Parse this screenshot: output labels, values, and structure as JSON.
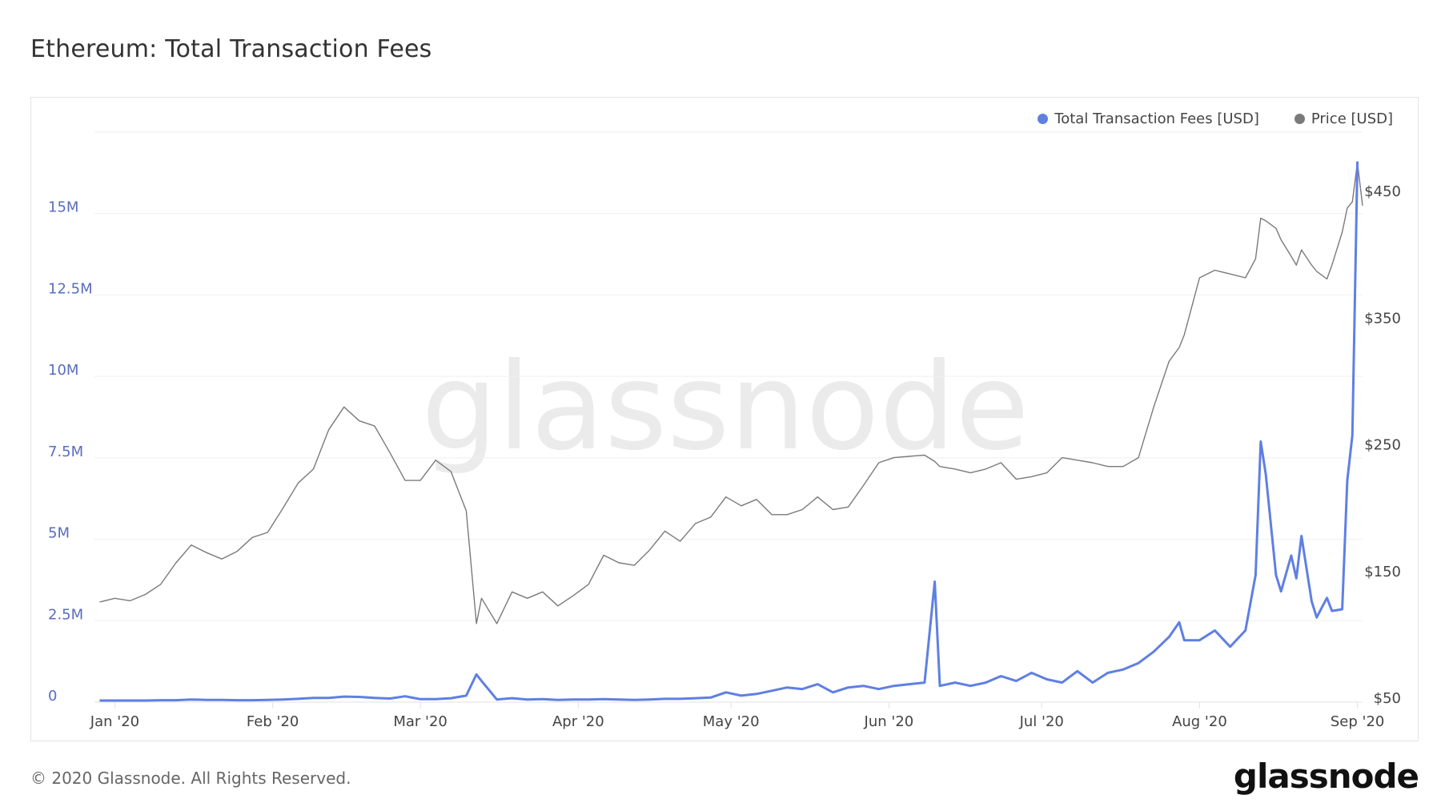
{
  "title": "Ethereum: Total Transaction Fees",
  "footer": "© 2020 Glassnode. All Rights Reserved.",
  "logo": "glassnode",
  "watermark": "glassnode",
  "colors": {
    "fees": "#5f7fe3",
    "price": "#7a7a7a",
    "grid": "#efefef",
    "left_axis": "#5a6cc0"
  },
  "chart_data": {
    "type": "line",
    "title": "Ethereum: Total Transaction Fees",
    "legend": [
      "Total Transaction Fees [USD]",
      "Price [USD]"
    ],
    "legend_placement": "top-right",
    "grid": true,
    "x_ticks": [
      {
        "label": "Jan '20",
        "date": "2020-01-01"
      },
      {
        "label": "Feb '20",
        "date": "2020-02-01"
      },
      {
        "label": "Mar '20",
        "date": "2020-03-01"
      },
      {
        "label": "Apr '20",
        "date": "2020-04-01"
      },
      {
        "label": "May '20",
        "date": "2020-05-01"
      },
      {
        "label": "Jun '20",
        "date": "2020-06-01"
      },
      {
        "label": "Jul '20",
        "date": "2020-07-01"
      },
      {
        "label": "Aug '20",
        "date": "2020-08-01"
      },
      {
        "label": "Sep '20",
        "date": "2020-09-01"
      }
    ],
    "xlim": [
      "2019-12-28",
      "2020-09-02"
    ],
    "y_left": {
      "label": "Total Transaction Fees [USD]",
      "ylim": [
        0,
        17500000
      ],
      "ticks": [
        0,
        2500000,
        5000000,
        7500000,
        10000000,
        12500000,
        15000000
      ],
      "tick_labels": [
        "0",
        "2.5M",
        "5M",
        "7.5M",
        "10M",
        "12.5M",
        "15M"
      ]
    },
    "y_right": {
      "label": "Price [USD]",
      "ylim": [
        50,
        500
      ],
      "ticks": [
        50,
        150,
        250,
        350,
        450
      ],
      "tick_labels": [
        "$50",
        "$150",
        "$250",
        "$350",
        "$450"
      ]
    },
    "x": [
      "2019-12-29",
      "2020-01-01",
      "2020-01-04",
      "2020-01-07",
      "2020-01-10",
      "2020-01-13",
      "2020-01-16",
      "2020-01-19",
      "2020-01-22",
      "2020-01-25",
      "2020-01-28",
      "2020-01-31",
      "2020-02-03",
      "2020-02-06",
      "2020-02-09",
      "2020-02-12",
      "2020-02-15",
      "2020-02-18",
      "2020-02-21",
      "2020-02-24",
      "2020-02-27",
      "2020-03-01",
      "2020-03-04",
      "2020-03-07",
      "2020-03-10",
      "2020-03-12",
      "2020-03-13",
      "2020-03-16",
      "2020-03-19",
      "2020-03-22",
      "2020-03-25",
      "2020-03-28",
      "2020-03-31",
      "2020-04-03",
      "2020-04-06",
      "2020-04-09",
      "2020-04-12",
      "2020-04-15",
      "2020-04-18",
      "2020-04-21",
      "2020-04-24",
      "2020-04-27",
      "2020-04-30",
      "2020-05-03",
      "2020-05-06",
      "2020-05-09",
      "2020-05-12",
      "2020-05-15",
      "2020-05-18",
      "2020-05-21",
      "2020-05-24",
      "2020-05-27",
      "2020-05-30",
      "2020-06-02",
      "2020-06-05",
      "2020-06-08",
      "2020-06-10",
      "2020-06-11",
      "2020-06-14",
      "2020-06-17",
      "2020-06-20",
      "2020-06-23",
      "2020-06-26",
      "2020-06-29",
      "2020-07-02",
      "2020-07-05",
      "2020-07-08",
      "2020-07-11",
      "2020-07-14",
      "2020-07-17",
      "2020-07-20",
      "2020-07-23",
      "2020-07-26",
      "2020-07-28",
      "2020-07-29",
      "2020-08-01",
      "2020-08-04",
      "2020-08-07",
      "2020-08-10",
      "2020-08-12",
      "2020-08-13",
      "2020-08-14",
      "2020-08-16",
      "2020-08-17",
      "2020-08-19",
      "2020-08-20",
      "2020-08-21",
      "2020-08-23",
      "2020-08-24",
      "2020-08-26",
      "2020-08-27",
      "2020-08-29",
      "2020-08-30",
      "2020-08-31",
      "2020-09-01",
      "2020-09-02"
    ],
    "series": [
      {
        "name": "Total Transaction Fees [USD]",
        "axis": "left",
        "values": [
          50000,
          50000,
          50000,
          50000,
          60000,
          60000,
          80000,
          70000,
          70000,
          60000,
          60000,
          70000,
          80000,
          100000,
          130000,
          130000,
          170000,
          160000,
          130000,
          110000,
          180000,
          90000,
          90000,
          120000,
          200000,
          850000,
          650000,
          80000,
          120000,
          80000,
          90000,
          70000,
          80000,
          80000,
          90000,
          80000,
          70000,
          80000,
          100000,
          100000,
          120000,
          140000,
          300000,
          200000,
          250000,
          350000,
          450000,
          400000,
          550000,
          300000,
          450000,
          500000,
          400000,
          500000,
          550000,
          600000,
          3700000,
          500000,
          600000,
          500000,
          600000,
          800000,
          650000,
          900000,
          700000,
          600000,
          950000,
          600000,
          900000,
          1000000,
          1200000,
          1550000,
          2000000,
          2450000,
          1900000,
          1900000,
          2200000,
          1700000,
          2200000,
          3900000,
          8000000,
          7000000,
          3900000,
          3400000,
          4500000,
          3800000,
          5100000,
          3100000,
          2600000,
          3200000,
          2800000,
          2850000,
          6800000,
          8200000,
          16600000,
          null
        ]
      },
      {
        "name": "Price [USD]",
        "axis": "right",
        "values": [
          129,
          132,
          130,
          135,
          143,
          160,
          174,
          168,
          163,
          169,
          180,
          184,
          203,
          223,
          234,
          265,
          283,
          272,
          268,
          247,
          225,
          225,
          241,
          232,
          201,
          112,
          132,
          112,
          137,
          132,
          137,
          126,
          134,
          143,
          166,
          160,
          158,
          170,
          185,
          177,
          191,
          196,
          212,
          205,
          210,
          198,
          198,
          202,
          212,
          202,
          204,
          221,
          239,
          243,
          244,
          245,
          240,
          236,
          234,
          231,
          234,
          239,
          226,
          228,
          231,
          243,
          241,
          239,
          236,
          236,
          243,
          283,
          319,
          330,
          340,
          385,
          391,
          388,
          385,
          400,
          432,
          430,
          424,
          415,
          402,
          395,
          407,
          395,
          390,
          384,
          395,
          421,
          440,
          445,
          476,
          442
        ]
      }
    ]
  }
}
